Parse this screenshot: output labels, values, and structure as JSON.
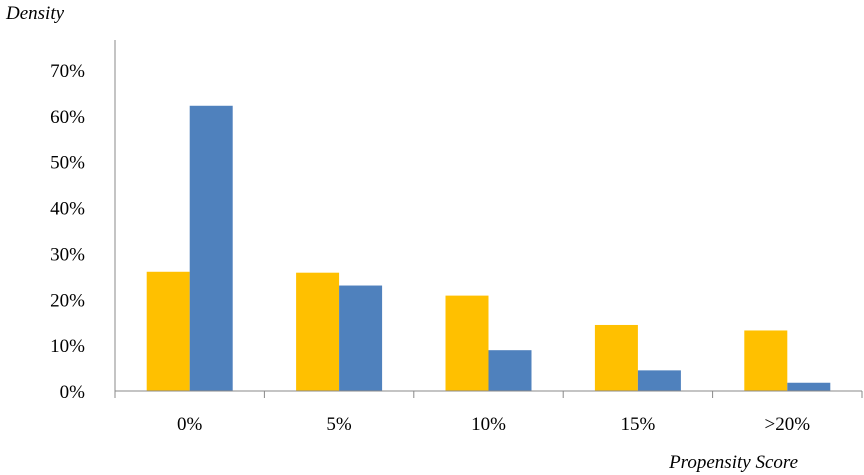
{
  "chart_data": {
    "type": "bar",
    "ylabel": "Density",
    "xlabel": "Propensity Score",
    "categories": [
      "0%",
      "5%",
      "10%",
      "15%",
      ">20%"
    ],
    "series": [
      {
        "color": "#FFC000",
        "values": [
          26,
          25.8,
          20.8,
          14.4,
          13.2
        ]
      },
      {
        "color": "#4F81BD",
        "values": [
          62.2,
          23,
          8.9,
          4.5,
          1.8
        ]
      }
    ],
    "ylim": [
      0,
      70
    ],
    "yticks": [
      "0%",
      "10%",
      "20%",
      "30%",
      "40%",
      "50%",
      "60%",
      "70%"
    ],
    "ytick_values": [
      0,
      10,
      20,
      30,
      40,
      50,
      60,
      70
    ],
    "grid": false,
    "legend": "none"
  }
}
